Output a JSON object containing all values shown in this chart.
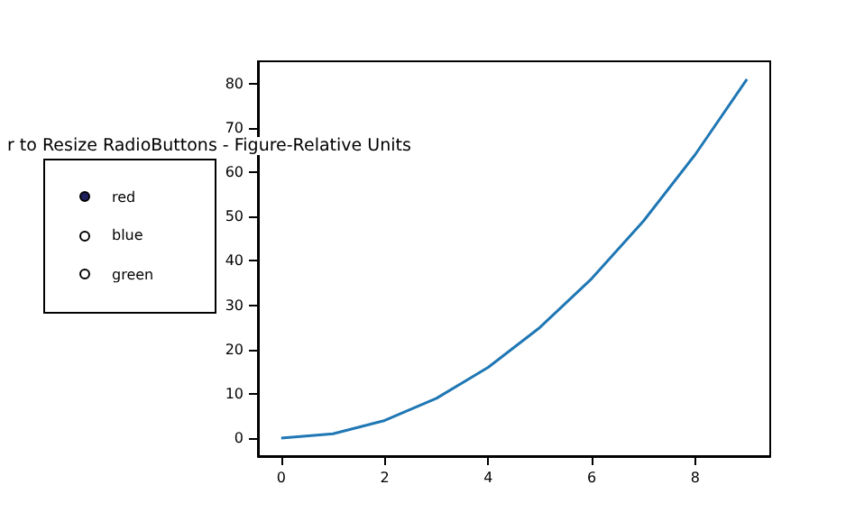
{
  "chart_data": {
    "type": "line",
    "title": "r to Resize RadioButtons - Figure-Relative Units",
    "x": [
      0,
      1,
      2,
      3,
      4,
      5,
      6,
      7,
      8,
      9
    ],
    "series": [
      {
        "color": "#1f77b4",
        "values": [
          0,
          1,
          4,
          9,
          16,
          25,
          36,
          49,
          64,
          81
        ]
      }
    ],
    "xlim": [
      -0.45,
      9.45
    ],
    "xticks": [
      0,
      2,
      4,
      6,
      8
    ],
    "ylim": [
      -4.05,
      85.05
    ],
    "yticks": [
      0,
      10,
      20,
      30,
      40,
      50,
      60,
      70,
      80
    ],
    "grid": false,
    "marker": "none",
    "line_style": "solid",
    "annotations": [
      "red",
      "blue",
      "green"
    ]
  }
}
